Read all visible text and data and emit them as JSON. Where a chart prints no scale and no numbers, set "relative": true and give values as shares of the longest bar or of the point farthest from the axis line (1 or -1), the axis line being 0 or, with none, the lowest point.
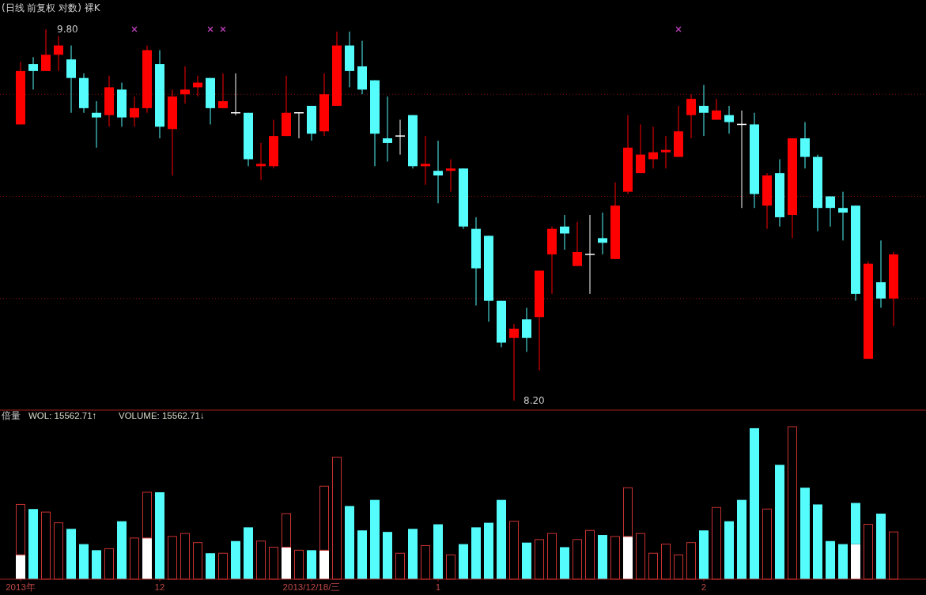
{
  "chart_data": [
    {
      "type": "candlestick",
      "title": "(日线 前复权 对数) 裸K",
      "tick_labels": false,
      "grid": "y",
      "yticks": [
        {
          "value": 9.52,
          "label": null
        },
        {
          "value": 9.08,
          "label": null
        },
        {
          "value": 8.64,
          "label": null
        }
      ],
      "ohlc": [
        [
          9.39,
          9.66,
          9.39,
          9.62
        ],
        [
          9.65,
          9.68,
          9.54,
          9.62
        ],
        [
          9.62,
          9.8,
          9.62,
          9.69
        ],
        [
          9.69,
          9.77,
          9.62,
          9.73
        ],
        [
          9.67,
          9.73,
          9.44,
          9.59
        ],
        [
          9.59,
          9.61,
          9.44,
          9.46
        ],
        [
          9.44,
          9.49,
          9.29,
          9.42
        ],
        [
          9.43,
          9.6,
          9.38,
          9.55
        ],
        [
          9.54,
          9.57,
          9.38,
          9.42
        ],
        [
          9.42,
          9.51,
          9.38,
          9.46
        ],
        [
          9.46,
          9.73,
          9.44,
          9.71
        ],
        [
          9.65,
          9.71,
          9.33,
          9.38
        ],
        [
          9.37,
          9.54,
          9.17,
          9.51
        ],
        [
          9.52,
          9.64,
          9.48,
          9.54
        ],
        [
          9.55,
          9.6,
          9.51,
          9.57
        ],
        [
          9.59,
          9.59,
          9.39,
          9.46
        ],
        [
          9.46,
          9.61,
          9.46,
          9.49
        ],
        [
          9.44,
          9.61,
          9.43,
          9.44
        ],
        [
          9.44,
          9.44,
          9.21,
          9.24
        ],
        [
          9.21,
          9.31,
          9.15,
          9.22
        ],
        [
          9.21,
          9.41,
          9.2,
          9.34
        ],
        [
          9.34,
          9.6,
          9.34,
          9.44
        ],
        [
          9.44,
          9.44,
          9.33,
          9.44
        ],
        [
          9.47,
          9.47,
          9.32,
          9.35
        ],
        [
          9.36,
          9.61,
          9.34,
          9.52
        ],
        [
          9.47,
          9.79,
          9.47,
          9.73
        ],
        [
          9.73,
          9.79,
          9.55,
          9.62
        ],
        [
          9.64,
          9.75,
          9.52,
          9.54
        ],
        [
          9.58,
          9.58,
          9.21,
          9.35
        ],
        [
          9.33,
          9.51,
          9.23,
          9.31
        ],
        [
          9.34,
          9.41,
          9.26,
          9.34
        ],
        [
          9.43,
          9.43,
          9.2,
          9.21
        ],
        [
          9.21,
          9.34,
          9.13,
          9.22
        ],
        [
          9.19,
          9.32,
          9.05,
          9.17
        ],
        [
          9.19,
          9.24,
          9.1,
          9.2
        ],
        [
          9.2,
          9.2,
          8.94,
          8.95
        ],
        [
          8.94,
          8.99,
          8.61,
          8.77
        ],
        [
          8.91,
          8.91,
          8.54,
          8.63
        ],
        [
          8.63,
          8.63,
          8.43,
          8.45
        ],
        [
          8.47,
          8.53,
          8.2,
          8.51
        ],
        [
          8.55,
          8.6,
          8.41,
          8.47
        ],
        [
          8.56,
          8.76,
          8.33,
          8.76
        ],
        [
          8.83,
          8.95,
          8.66,
          8.94
        ],
        [
          8.95,
          9.0,
          8.85,
          8.92
        ],
        [
          8.78,
          8.97,
          8.78,
          8.84
        ],
        [
          8.83,
          9.0,
          8.66,
          8.83
        ],
        [
          8.9,
          9.01,
          8.83,
          8.88
        ],
        [
          8.81,
          9.14,
          8.81,
          9.04
        ],
        [
          9.1,
          9.43,
          9.09,
          9.29
        ],
        [
          9.18,
          9.39,
          9.18,
          9.26
        ],
        [
          9.24,
          9.38,
          9.2,
          9.27
        ],
        [
          9.27,
          9.34,
          9.2,
          9.28
        ],
        [
          9.25,
          9.47,
          9.25,
          9.36
        ],
        [
          9.43,
          9.52,
          9.33,
          9.5
        ],
        [
          9.47,
          9.56,
          9.34,
          9.44
        ],
        [
          9.41,
          9.5,
          9.41,
          9.45
        ],
        [
          9.43,
          9.47,
          9.35,
          9.4
        ],
        [
          9.39,
          9.45,
          9.03,
          9.39
        ],
        [
          9.39,
          9.44,
          9.03,
          9.09
        ],
        [
          9.04,
          9.18,
          8.94,
          9.17
        ],
        [
          9.18,
          9.24,
          8.95,
          8.99
        ],
        [
          9.0,
          9.33,
          8.9,
          9.33
        ],
        [
          9.33,
          9.4,
          9.2,
          9.25
        ],
        [
          9.25,
          9.26,
          8.93,
          9.03
        ],
        [
          9.08,
          9.08,
          8.95,
          9.03
        ],
        [
          9.03,
          9.1,
          8.89,
          9.01
        ],
        [
          9.04,
          9.04,
          8.63,
          8.66
        ],
        [
          8.38,
          8.8,
          8.38,
          8.79
        ],
        [
          8.71,
          8.89,
          8.6,
          8.64
        ],
        [
          8.64,
          8.84,
          8.52,
          8.83
        ]
      ],
      "colors": [
        "#ff0000",
        "#54fcfc",
        "#ff0000",
        "#ff0000",
        "#54fcfc",
        "#54fcfc",
        "#54fcfc",
        "#ff0000",
        "#54fcfc",
        "#ff0000",
        "#ff0000",
        "#54fcfc",
        "#ff0000",
        "#ff0000",
        "#ff0000",
        "#54fcfc",
        "#ff0000",
        "#ffffff",
        "#54fcfc",
        "#ff0000",
        "#ff0000",
        "#ff0000",
        "#ffffff",
        "#54fcfc",
        "#ff0000",
        "#ff0000",
        "#54fcfc",
        "#54fcfc",
        "#54fcfc",
        "#54fcfc",
        "#ffffff",
        "#54fcfc",
        "#ff0000",
        "#54fcfc",
        "#ff0000",
        "#54fcfc",
        "#54fcfc",
        "#54fcfc",
        "#54fcfc",
        "#ff0000",
        "#54fcfc",
        "#ff0000",
        "#ff0000",
        "#54fcfc",
        "#ff0000",
        "#ffffff",
        "#54fcfc",
        "#ff0000",
        "#ff0000",
        "#ff0000",
        "#ff0000",
        "#ff0000",
        "#ff0000",
        "#ff0000",
        "#54fcfc",
        "#ff0000",
        "#54fcfc",
        "#ffffff",
        "#54fcfc",
        "#ff0000",
        "#54fcfc",
        "#ff0000",
        "#54fcfc",
        "#54fcfc",
        "#54fcfc",
        "#54fcfc",
        "#54fcfc",
        "#ff0000",
        "#54fcfc",
        "#ff0000"
      ],
      "annotations": [
        "9.80",
        "8.20"
      ],
      "series": [
        {
          "type": "scatter",
          "marker": "cross",
          "color": "#c040c0",
          "values": [
            null,
            null,
            null,
            null,
            null,
            null,
            null,
            null,
            null,
            9.8,
            null,
            null,
            null,
            null,
            null,
            9.8,
            9.8,
            null,
            null,
            null,
            null,
            null,
            null,
            null,
            null,
            null,
            null,
            null,
            null,
            null,
            null,
            null,
            null,
            null,
            null,
            null,
            null,
            null,
            null,
            null,
            null,
            null,
            null,
            null,
            null,
            null,
            null,
            null,
            null,
            null,
            null,
            null,
            9.8,
            null,
            null,
            null,
            null,
            null,
            null,
            null,
            null,
            null,
            null,
            null,
            null,
            null,
            null,
            null,
            null,
            null
          ]
        }
      ]
    },
    {
      "type": "bar",
      "title": "倍量",
      "relative": true,
      "stacked": true,
      "tick_labels": "x",
      "categories": [
        "2013年",
        null,
        null,
        null,
        null,
        null,
        null,
        null,
        null,
        null,
        null,
        "12",
        null,
        null,
        null,
        null,
        null,
        null,
        null,
        null,
        null,
        null,
        null,
        "2013/12/18/三",
        null,
        null,
        null,
        null,
        null,
        null,
        null,
        null,
        null,
        "1",
        null,
        null,
        null,
        null,
        null,
        null,
        null,
        null,
        null,
        null,
        null,
        null,
        null,
        null,
        null,
        null,
        null,
        null,
        null,
        null,
        "2",
        null,
        null,
        null,
        null,
        null,
        null,
        null,
        null,
        null,
        null,
        null,
        null,
        null,
        null,
        null
      ],
      "annotations": [
        "WOL: 15562.71↑",
        "VOLUME: 15562.71↓"
      ],
      "series": [
        {
          "color": "#ffffff",
          "values": [
            0.16,
            null,
            null,
            null,
            null,
            null,
            null,
            null,
            null,
            null,
            0.27,
            null,
            null,
            null,
            null,
            null,
            null,
            null,
            null,
            null,
            null,
            0.21,
            null,
            null,
            0.19,
            null,
            null,
            null,
            null,
            null,
            null,
            null,
            null,
            null,
            null,
            null,
            null,
            null,
            null,
            null,
            null,
            null,
            null,
            null,
            null,
            null,
            null,
            null,
            0.28,
            null,
            null,
            null,
            null,
            null,
            null,
            null,
            null,
            null,
            null,
            null,
            null,
            null,
            null,
            null,
            null,
            null,
            0.23,
            null,
            null,
            null
          ]
        },
        {
          "color": "#c83232",
          "values": [
            0.33,
            null,
            0.44,
            0.37,
            null,
            null,
            null,
            0.2,
            null,
            0.27,
            0.3,
            null,
            0.28,
            0.3,
            0.24,
            null,
            0.17,
            null,
            null,
            0.25,
            0.21,
            0.22,
            0.19,
            null,
            0.42,
            0.8,
            null,
            null,
            null,
            null,
            0.17,
            null,
            0.22,
            null,
            0.16,
            null,
            null,
            null,
            null,
            0.38,
            null,
            0.26,
            0.3,
            null,
            0.26,
            0.32,
            null,
            0.28,
            0.32,
            0.3,
            0.17,
            0.23,
            0.16,
            0.24,
            null,
            0.47,
            null,
            null,
            null,
            0.46,
            null,
            1,
            null,
            null,
            null,
            null,
            null,
            0.36,
            null,
            0.31
          ]
        },
        {
          "color": "#54fcfc",
          "values": [
            null,
            0.46,
            null,
            null,
            0.33,
            0.23,
            0.19,
            null,
            0.38,
            null,
            null,
            0.57,
            null,
            null,
            null,
            0.17,
            null,
            0.25,
            0.34,
            null,
            null,
            null,
            null,
            0.19,
            null,
            null,
            0.48,
            0.32,
            0.52,
            0.31,
            null,
            0.33,
            null,
            0.36,
            null,
            0.23,
            0.34,
            0.37,
            0.52,
            null,
            0.24,
            null,
            null,
            0.21,
            null,
            null,
            0.29,
            null,
            null,
            null,
            null,
            null,
            null,
            null,
            0.32,
            null,
            0.38,
            0.52,
            0.99,
            null,
            0.75,
            null,
            0.6,
            0.49,
            0.25,
            0.23,
            0.27,
            null,
            0.43,
            null
          ]
        }
      ]
    }
  ]
}
